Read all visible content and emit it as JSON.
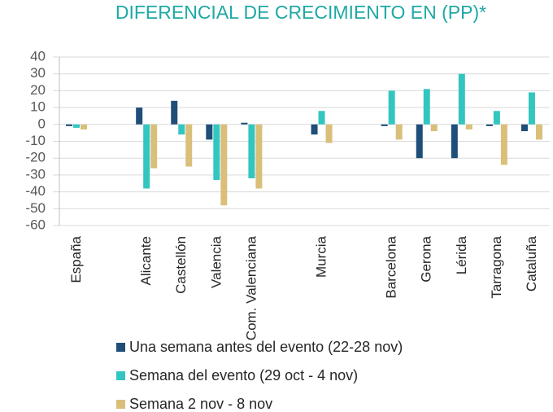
{
  "chart_data": {
    "type": "bar",
    "title": "DIFERENCIAL DE CRECIMIENTO EN (PP)*",
    "categories": [
      "España",
      null,
      "Alicante",
      "Castellón",
      "Valencia",
      "Com. Valenciana",
      null,
      "Murcia",
      null,
      "Barcelona",
      "Gerona",
      "Lérida",
      "Tarragona",
      "Cataluña"
    ],
    "series": [
      {
        "name": "Una semana antes del evento (22-28 nov)",
        "color": "#1f4e79",
        "values": [
          -1,
          null,
          10,
          14,
          -9,
          1,
          null,
          -6,
          null,
          -1,
          -20,
          -20,
          -1,
          -4
        ]
      },
      {
        "name": "Semana del evento (29 oct - 4 nov)",
        "color": "#33c6c0",
        "values": [
          -2,
          null,
          -38,
          -6,
          -33,
          -32,
          null,
          8,
          null,
          20,
          21,
          30,
          8,
          19
        ]
      },
      {
        "name": "Semana 2 nov - 8 nov",
        "color": "#d9bf7a",
        "values": [
          -3,
          null,
          -26,
          -25,
          -48,
          -38,
          null,
          -11,
          null,
          -9,
          -4,
          -3,
          -24,
          -9
        ]
      }
    ],
    "ylim": [
      -60,
      40
    ],
    "yticks": [
      -60,
      -50,
      -40,
      -30,
      -20,
      -10,
      0,
      10,
      20,
      30,
      40
    ],
    "grid": true,
    "legend": "bottom"
  }
}
